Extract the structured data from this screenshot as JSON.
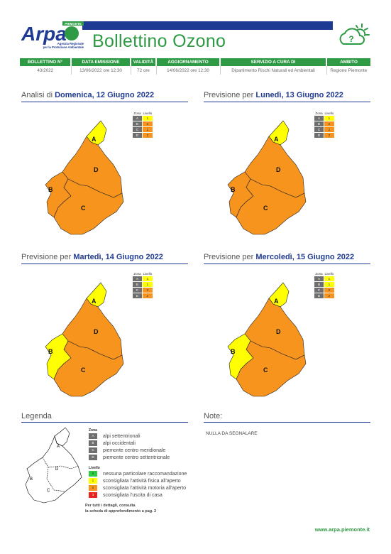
{
  "header": {
    "logo_text": "Arpa",
    "logo_region": "PIEMONTE",
    "logo_sub1": "Agenzia Regionale",
    "logo_sub2": "per la Protezione Ambientale",
    "title": "Bollettino Ozono"
  },
  "info_table": {
    "headers": [
      "BOLLETTINO N°",
      "DATA EMISSIONE",
      "VALIDITÀ",
      "AGGIORNAMENTO",
      "SERVIZIO A CURA DI",
      "AMBITO"
    ],
    "values": [
      "43/2022",
      "13/06/2022 ore 12:30",
      "72 ore",
      "14/06/2022 ore 12:30",
      "Dipartimento Rischi Naturali ed Ambientali",
      "Regione Piemonte"
    ]
  },
  "zone_table_header": {
    "zona": "Zona",
    "livello": "Livello"
  },
  "panels": [
    {
      "prefix": "Analisi di",
      "date": "Domenica, 12 Giugno 2022",
      "zones": [
        [
          "A",
          "1"
        ],
        [
          "B",
          "2"
        ],
        [
          "C",
          "2"
        ],
        [
          "D",
          "2"
        ]
      ]
    },
    {
      "prefix": "Previsione per",
      "date": "Lunedì, 13 Giugno 2022",
      "zones": [
        [
          "A",
          "1"
        ],
        [
          "B",
          "2"
        ],
        [
          "C",
          "2"
        ],
        [
          "D",
          "2"
        ]
      ]
    },
    {
      "prefix": "Previsione per",
      "date": "Martedì, 14 Giugno 2022",
      "zones": [
        [
          "A",
          "1"
        ],
        [
          "B",
          "1"
        ],
        [
          "C",
          "2"
        ],
        [
          "D",
          "2"
        ]
      ]
    },
    {
      "prefix": "Previsione per",
      "date": "Mercoledì, 15 Giugno 2022",
      "zones": [
        [
          "A",
          "1"
        ],
        [
          "B",
          "1"
        ],
        [
          "C",
          "2"
        ],
        [
          "D",
          "2"
        ]
      ]
    }
  ],
  "map_labels": {
    "a": "A",
    "b": "B",
    "c": "C",
    "d": "D"
  },
  "legend": {
    "title": "Legenda",
    "zona_title": "Zona",
    "zones": [
      {
        "code": "A",
        "label": "alpi settentrionali"
      },
      {
        "code": "B",
        "label": "alpi occidentali"
      },
      {
        "code": "C",
        "label": "piemonte centro meridionale"
      },
      {
        "code": "D",
        "label": "piemonte centro settentrionale"
      }
    ],
    "livello_title": "Livello",
    "levels": [
      {
        "code": "0",
        "label": "nessuna particolare raccomandazione",
        "color": "#2ecc40"
      },
      {
        "code": "1",
        "label": "sconsigliata l'attività fisica all'aperto",
        "color": "#ffff00"
      },
      {
        "code": "2",
        "label": "sconsigliata l'attività motoria all'aperto",
        "color": "#f7941d"
      },
      {
        "code": "3",
        "label": "sconsigliata l'uscita di casa",
        "color": "#e8231e"
      }
    ],
    "note_line1": "Per tutti i dettagli, consulta",
    "note_line2": "la scheda di approfondimento a pag. 2"
  },
  "notes": {
    "title": "Note:",
    "text": "NULLA DA SEGNALARE"
  },
  "footer": {
    "url": "www.arpa.piemonte.it"
  },
  "colors": {
    "level1": "#ffff00",
    "level2": "#f7941d",
    "brand_green": "#2e9a44",
    "brand_blue": "#1f3a93",
    "zone_grey": "#6e6e6e"
  }
}
